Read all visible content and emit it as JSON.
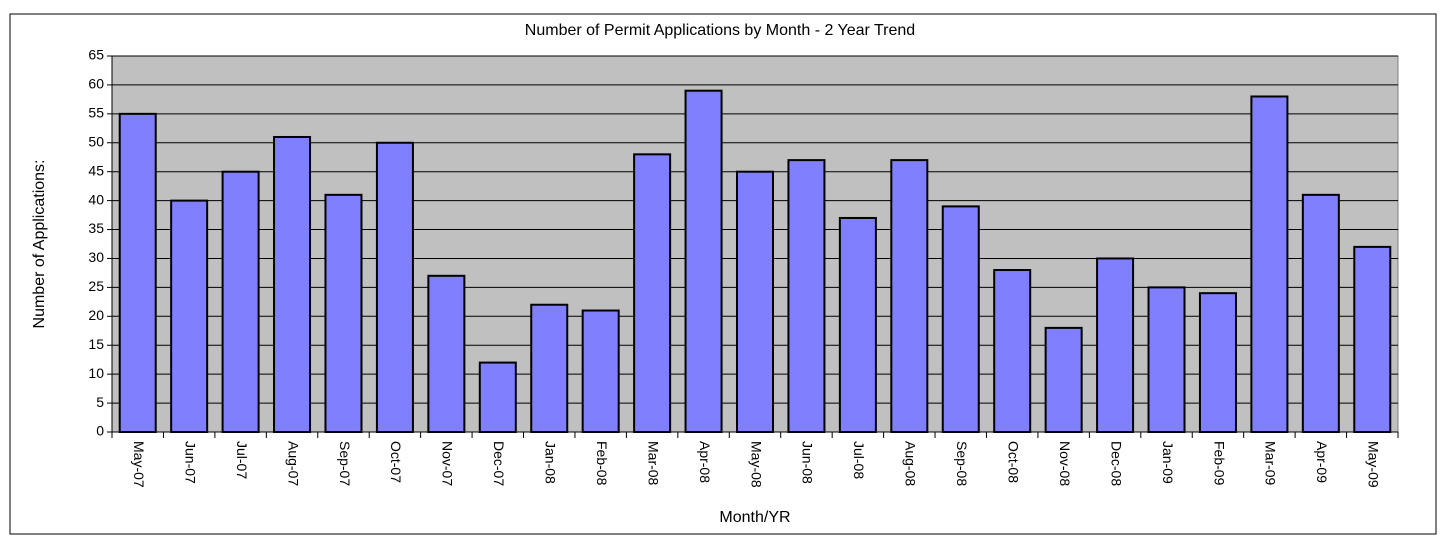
{
  "chart_data": {
    "type": "bar",
    "title": "Number of Permit Applications by Month - 2 Year Trend",
    "x_label": "Month/YR",
    "y_label": "Number of Applications:",
    "categories": [
      "May-07",
      "Jun-07",
      "Jul-07",
      "Aug-07",
      "Sep-07",
      "Oct-07",
      "Nov-07",
      "Dec-07",
      "Jan-08",
      "Feb-08",
      "Mar-08",
      "Apr-08",
      "May-08",
      "Jun-08",
      "Jul-08",
      "Aug-08",
      "Sep-08",
      "Oct-08",
      "Nov-08",
      "Dec-08",
      "Jan-09",
      "Feb-09",
      "Mar-09",
      "Apr-09",
      "May-09"
    ],
    "values": [
      55,
      40,
      45,
      51,
      41,
      50,
      27,
      12,
      22,
      21,
      48,
      59,
      45,
      47,
      37,
      47,
      39,
      28,
      18,
      30,
      25,
      24,
      58,
      41,
      32
    ],
    "color": "#8080ff",
    "plot_background": "#c0c0c0",
    "ylim": [
      0,
      65
    ],
    "yticks": [
      0,
      5,
      10,
      15,
      20,
      25,
      30,
      35,
      40,
      45,
      50,
      55,
      60,
      65
    ],
    "grid": true
  }
}
